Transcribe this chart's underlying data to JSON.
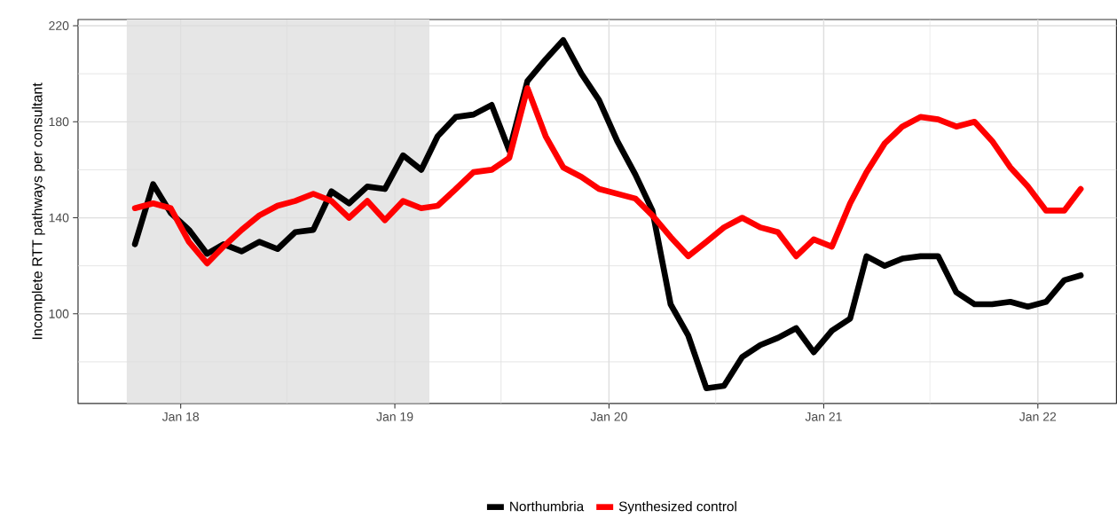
{
  "chart_data": {
    "type": "line",
    "ylabel": "Incomplete RTT pathways per consultant",
    "x": [
      "2017-10-15",
      "2017-11-15",
      "2017-12-15",
      "2018-01-15",
      "2018-02-15",
      "2018-03-15",
      "2018-04-15",
      "2018-05-15",
      "2018-06-15",
      "2018-07-15",
      "2018-08-15",
      "2018-09-15",
      "2018-10-15",
      "2018-11-15",
      "2018-12-15",
      "2019-01-15",
      "2019-02-15",
      "2019-03-15",
      "2019-04-15",
      "2019-05-15",
      "2019-06-15",
      "2019-07-15",
      "2019-08-15",
      "2019-09-15",
      "2019-10-15",
      "2019-11-15",
      "2019-12-15",
      "2020-01-15",
      "2020-02-15",
      "2020-03-15",
      "2020-04-15",
      "2020-05-15",
      "2020-06-15",
      "2020-07-15",
      "2020-08-15",
      "2020-09-15",
      "2020-10-15",
      "2020-11-15",
      "2020-12-15",
      "2021-01-15",
      "2021-02-15",
      "2021-03-15",
      "2021-04-15",
      "2021-05-15",
      "2021-06-15",
      "2021-07-15",
      "2021-08-15",
      "2021-09-15",
      "2021-10-15",
      "2021-11-15",
      "2021-12-15",
      "2022-01-15",
      "2022-02-15",
      "2022-03-15"
    ],
    "series": [
      {
        "name": "Northumbria",
        "color": "#000000",
        "values": [
          129,
          154,
          142,
          135,
          125,
          129,
          126,
          130,
          127,
          134,
          135,
          151,
          146,
          153,
          152,
          166,
          160,
          174,
          182,
          183,
          187,
          168,
          197,
          206,
          214,
          200,
          189,
          172,
          158,
          143,
          104,
          91,
          69,
          70,
          82,
          87,
          90,
          94,
          84,
          93,
          98,
          124,
          120,
          123,
          124,
          124,
          109,
          104,
          104,
          105,
          103,
          105,
          114,
          116
        ]
      },
      {
        "name": "Synthesized control",
        "color": "#ff0000",
        "values": [
          144,
          146,
          144,
          130,
          121,
          128,
          135,
          141,
          145,
          147,
          150,
          147,
          140,
          147,
          139,
          147,
          144,
          145,
          152,
          159,
          160,
          165,
          194,
          174,
          161,
          157,
          152,
          150,
          148,
          141,
          132,
          124,
          130,
          136,
          140,
          136,
          134,
          124,
          131,
          128,
          146,
          159,
          171,
          178,
          182,
          181,
          178,
          180,
          172,
          161,
          153,
          143,
          143,
          152
        ]
      }
    ],
    "xlim": [
      "2017-07-10",
      "2022-05-15"
    ],
    "xticks": [
      {
        "value": "2018-01-01",
        "label": "Jan 18"
      },
      {
        "value": "2018-07-01",
        "label": null
      },
      {
        "value": "2019-01-01",
        "label": "Jan 19"
      },
      {
        "value": "2019-07-01",
        "label": null
      },
      {
        "value": "2020-01-01",
        "label": "Jan 20"
      },
      {
        "value": "2020-07-01",
        "label": null
      },
      {
        "value": "2021-01-01",
        "label": "Jan 21"
      },
      {
        "value": "2021-07-01",
        "label": null
      },
      {
        "value": "2022-01-01",
        "label": "Jan 22"
      }
    ],
    "ylim": [
      62.7,
      222.6
    ],
    "yticks": [
      {
        "value": 80,
        "label": null
      },
      100,
      {
        "value": 120,
        "label": null
      },
      140,
      {
        "value": 160,
        "label": null
      },
      180,
      {
        "value": 200,
        "label": null
      },
      220
    ],
    "bands": [
      {
        "axis": "x",
        "from": "2017-10-01",
        "to": "2019-03-01",
        "color": "#e6e6e6"
      }
    ],
    "grid": true,
    "legend": "bottom"
  }
}
